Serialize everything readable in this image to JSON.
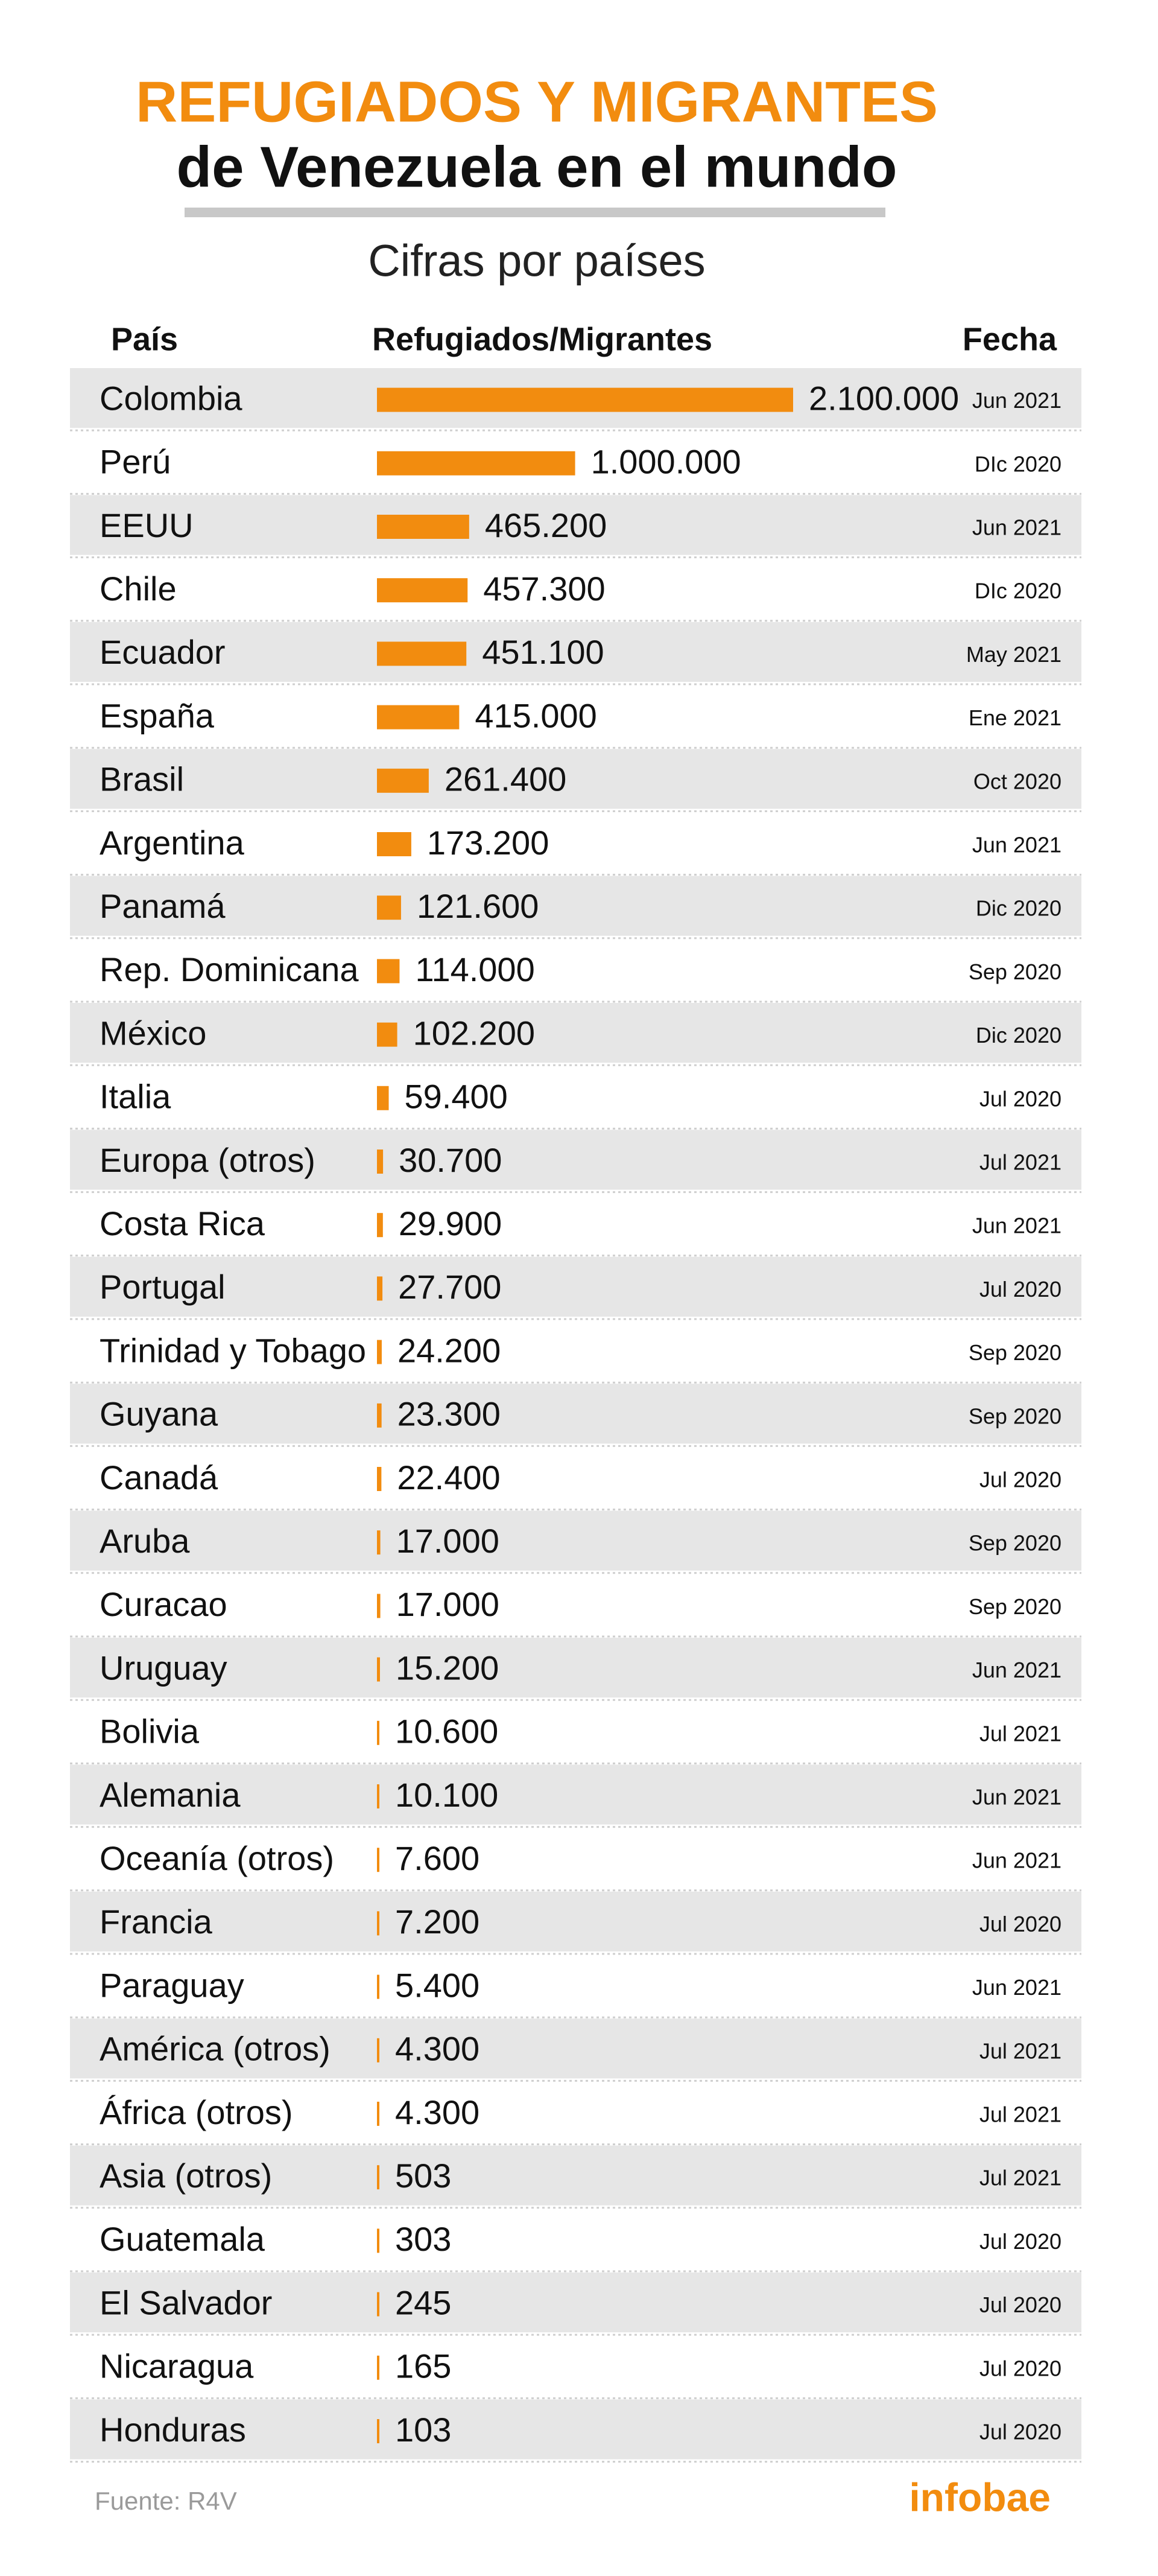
{
  "chart_data": {
    "type": "bar",
    "orientation": "horizontal",
    "title": [
      "REFUGIADOS Y MIGRANTES",
      "de Venezuela en el mundo"
    ],
    "subtitle": "Cifras por países",
    "column_headers": [
      "País",
      "Refugiados/Migrantes",
      "Fecha"
    ],
    "color": "#f28c0f",
    "categories": [
      "Colombia",
      "Perú",
      "EEUU",
      "Chile",
      "Ecuador",
      "España",
      "Brasil",
      "Argentina",
      "Panamá",
      "Rep. Dominicana",
      "México",
      "Italia",
      "Europa (otros)",
      "Costa Rica",
      "Portugal",
      "Trinidad y Tobago",
      "Guyana",
      "Canadá",
      "Aruba",
      "Curacao",
      "Uruguay",
      "Bolivia",
      "Alemania",
      "Oceanía (otros)",
      "Francia",
      "Paraguay",
      "América (otros)",
      "África (otros)",
      "Asia (otros)",
      "Guatemala",
      "El Salvador",
      "Nicaragua",
      "Honduras"
    ],
    "values": [
      2100000,
      1000000,
      465200,
      457300,
      451100,
      415000,
      261400,
      173200,
      121600,
      114000,
      102200,
      59400,
      30700,
      29900,
      27700,
      24200,
      23300,
      22400,
      17000,
      17000,
      15200,
      10600,
      10100,
      7600,
      7200,
      5400,
      4300,
      4300,
      503,
      303,
      245,
      165,
      103
    ],
    "value_labels": [
      "2.100.000",
      "1.000.000",
      "465.200",
      "457.300",
      "451.100",
      "415.000",
      "261.400",
      "173.200",
      "121.600",
      "114.000",
      "102.200",
      "59.400",
      "30.700",
      "29.900",
      "27.700",
      "24.200",
      "23.300",
      "22.400",
      "17.000",
      "17.000",
      "15.200",
      "10.600",
      "10.100",
      "7.600",
      "7.200",
      "5.400",
      "4.300",
      "4.300",
      "503",
      "303",
      "245",
      "165",
      "103"
    ],
    "dates": [
      "Jun 2021",
      "DIc 2020",
      "Jun 2021",
      "DIc 2020",
      "May 2021",
      "Ene 2021",
      "Oct 2020",
      "Jun 2021",
      "Dic 2020",
      "Sep 2020",
      "Dic 2020",
      "Jul 2020",
      "Jul 2021",
      "Jun 2021",
      "Jul 2020",
      "Sep 2020",
      "Sep 2020",
      "Jul 2020",
      "Sep 2020",
      "Sep 2020",
      "Jun 2021",
      "Jul 2021",
      "Jun 2021",
      "Jun 2021",
      "Jul 2020",
      "Jun 2021",
      "Jul 2021",
      "Jul 2021",
      "Jul 2021",
      "Jul 2020",
      "Jul 2020",
      "Jul 2020",
      "Jul 2020"
    ],
    "source": "Fuente: R4V",
    "logo": "infobae"
  }
}
